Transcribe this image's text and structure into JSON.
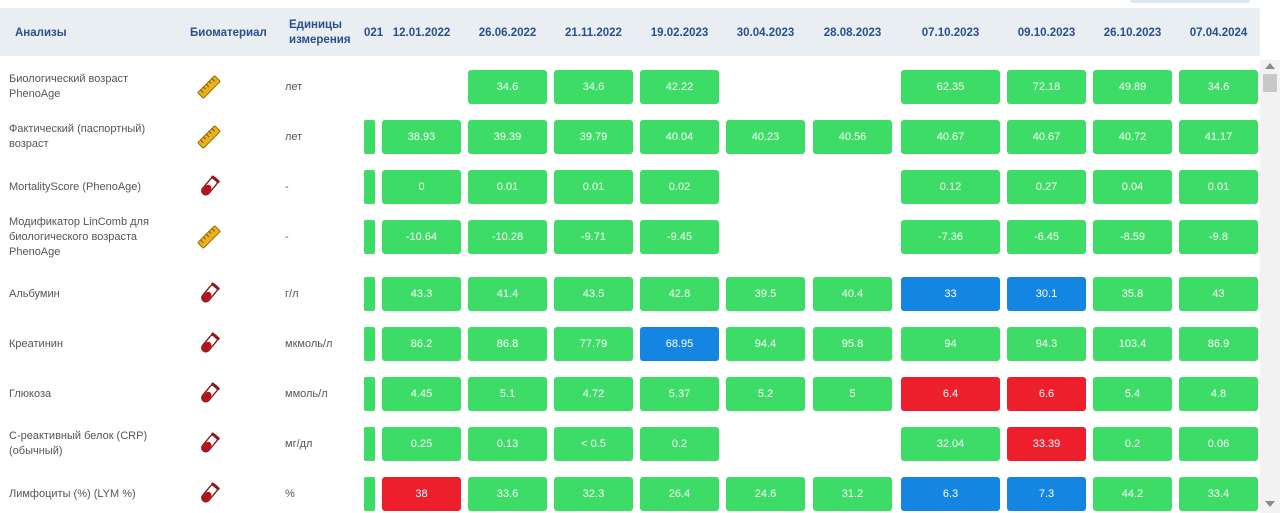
{
  "header": {
    "col_analysis": "Анализы",
    "col_biomaterial": "Биоматериал",
    "col_units_line1": "Единицы",
    "col_units_line2": "измерения",
    "partial_date": "021",
    "dates": [
      "12.01.2022",
      "26.06.2022",
      "21.11.2022",
      "19.02.2023",
      "30.04.2023",
      "28.08.2023",
      "07.10.2023",
      "09.10.2023",
      "26.10.2023",
      "07.04.2024"
    ]
  },
  "colors": {
    "normal": "#3ddc66",
    "below": "#1485e0",
    "above": "#ee1f2c",
    "header_text": "#2a4f8f",
    "header_bg": "#e9eef2"
  },
  "rows": [
    {
      "name_line1": "Биологический возраст",
      "name_line2": "PhenoAge",
      "name_line3": "",
      "biomaterial_icon": "ruler-icon",
      "unit": "лет",
      "edge_visible": false,
      "values": [
        "",
        "34.6",
        "34.6",
        "42.22",
        "",
        "",
        "62.35",
        "72.18",
        "49.89",
        "34.6"
      ],
      "statuses": [
        "empty",
        "green",
        "green",
        "green",
        "empty",
        "empty",
        "green",
        "green",
        "green",
        "green"
      ]
    },
    {
      "name_line1": "Фактический (паспортный)",
      "name_line2": "возраст",
      "name_line3": "",
      "biomaterial_icon": "ruler-icon",
      "unit": "лет",
      "edge_visible": true,
      "values": [
        "38.93",
        "39.39",
        "39.79",
        "40.04",
        "40.23",
        "40.56",
        "40.67",
        "40.67",
        "40.72",
        "41.17"
      ],
      "statuses": [
        "green",
        "green",
        "green",
        "green",
        "green",
        "green",
        "green",
        "green",
        "green",
        "green"
      ]
    },
    {
      "name_line1": "MortalityScore (PhenoAge)",
      "name_line2": "",
      "name_line3": "",
      "biomaterial_icon": "test-tube-icon",
      "unit": "-",
      "edge_visible": true,
      "values": [
        "0",
        "0.01",
        "0.01",
        "0.02",
        "",
        "",
        "0.12",
        "0.27",
        "0.04",
        "0.01"
      ],
      "statuses": [
        "green",
        "green",
        "green",
        "green",
        "empty",
        "empty",
        "green",
        "green",
        "green",
        "green"
      ]
    },
    {
      "name_line1": "Модификатор LinComb для",
      "name_line2": "биологического возраста",
      "name_line3": "PhenoAge",
      "biomaterial_icon": "ruler-icon",
      "unit": "-",
      "edge_visible": true,
      "values": [
        "-10.64",
        "-10.28",
        "-9.71",
        "-9.45",
        "",
        "",
        "-7.36",
        "-6.45",
        "-8.59",
        "-9.8"
      ],
      "statuses": [
        "green",
        "green",
        "green",
        "green",
        "empty",
        "empty",
        "green",
        "green",
        "green",
        "green"
      ]
    },
    {
      "name_line1": "Альбумин",
      "name_line2": "",
      "name_line3": "",
      "biomaterial_icon": "test-tube-icon",
      "unit": "г/л",
      "edge_visible": true,
      "values": [
        "43.3",
        "41.4",
        "43.5",
        "42.8",
        "39.5",
        "40.4",
        "33",
        "30.1",
        "35.8",
        "43"
      ],
      "statuses": [
        "green",
        "green",
        "green",
        "green",
        "green",
        "green",
        "blue",
        "blue",
        "green",
        "green"
      ]
    },
    {
      "name_line1": "Креатинин",
      "name_line2": "",
      "name_line3": "",
      "biomaterial_icon": "test-tube-icon",
      "unit": "мкмоль/л",
      "edge_visible": true,
      "values": [
        "86.2",
        "86.8",
        "77.79",
        "68.95",
        "94.4",
        "95.8",
        "94",
        "94.3",
        "103.4",
        "86.9"
      ],
      "statuses": [
        "green",
        "green",
        "green",
        "blue",
        "green",
        "green",
        "green",
        "green",
        "green",
        "green"
      ]
    },
    {
      "name_line1": "Глюкоза",
      "name_line2": "",
      "name_line3": "",
      "biomaterial_icon": "test-tube-icon",
      "unit": "ммоль/л",
      "edge_visible": true,
      "values": [
        "4.45",
        "5.1",
        "4.72",
        "5.37",
        "5.2",
        "5",
        "6.4",
        "6.6",
        "5.4",
        "4.8"
      ],
      "statuses": [
        "green",
        "green",
        "green",
        "green",
        "green",
        "green",
        "red",
        "red",
        "green",
        "green"
      ]
    },
    {
      "name_line1": "С-реактивный белок (CRP)",
      "name_line2": "(обычный)",
      "name_line3": "",
      "biomaterial_icon": "test-tube-icon",
      "unit": "мг/дл",
      "edge_visible": true,
      "values": [
        "0.25",
        "0.13",
        "< 0.5",
        "0.2",
        "",
        "",
        "32.04",
        "33.39",
        "0.2",
        "0.06"
      ],
      "statuses": [
        "green",
        "green",
        "green",
        "green",
        "empty",
        "empty",
        "green",
        "red",
        "green",
        "green"
      ]
    },
    {
      "name_line1": "Лимфоциты (%) (LYM %)",
      "name_line2": "",
      "name_line3": "",
      "biomaterial_icon": "test-tube-icon",
      "unit": "%",
      "edge_visible": true,
      "values": [
        "38",
        "33.6",
        "32.3",
        "26.4",
        "24.6",
        "31.2",
        "6.3",
        "7.3",
        "44.2",
        "33.4"
      ],
      "statuses": [
        "red",
        "green",
        "green",
        "green",
        "green",
        "green",
        "blue",
        "blue",
        "green",
        "green"
      ]
    }
  ]
}
